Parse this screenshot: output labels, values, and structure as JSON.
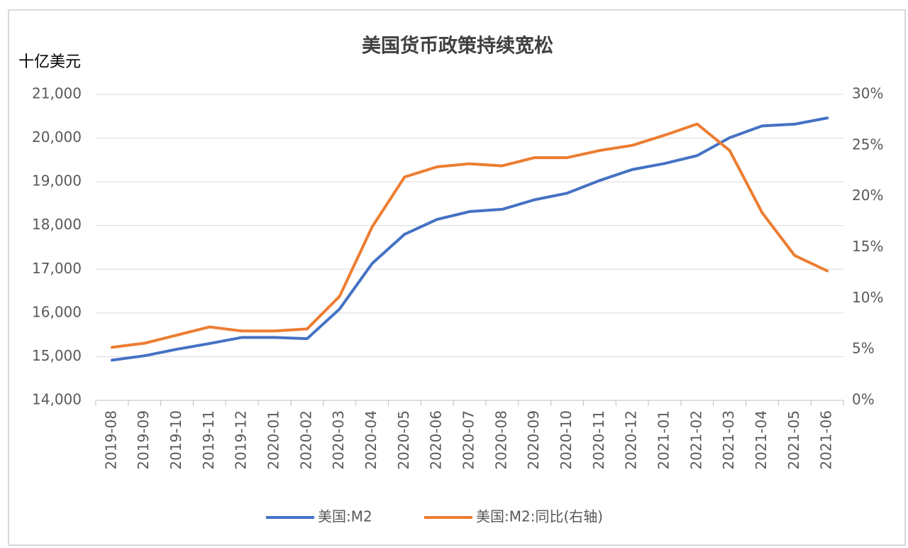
{
  "chart_data": {
    "type": "line",
    "title": "美国货币政策持续宽松",
    "y_axis_label": "十亿美元",
    "categories": [
      "2019-08",
      "2019-09",
      "2019-10",
      "2019-11",
      "2019-12",
      "2020-01",
      "2020-02",
      "2020-03",
      "2020-04",
      "2020-05",
      "2020-06",
      "2020-07",
      "2020-08",
      "2020-09",
      "2020-10",
      "2020-11",
      "2020-12",
      "2021-01",
      "2021-02",
      "2021-03",
      "2021-04",
      "2021-05",
      "2021-06"
    ],
    "series": [
      {
        "name": "美国:M2",
        "color": "#4472c4",
        "axis": "y",
        "values": [
          14920,
          15020,
          15170,
          15300,
          15440,
          15440,
          15410,
          16090,
          17130,
          17800,
          18140,
          18320,
          18370,
          18590,
          18740,
          19030,
          19280,
          19420,
          19600,
          20010,
          20280,
          20320,
          20460
        ]
      },
      {
        "name": "美国:M2:同比(右轴)",
        "color": "#ed7d31",
        "axis": "y2",
        "values": [
          5.2,
          5.6,
          6.4,
          7.2,
          6.8,
          6.8,
          7.0,
          10.2,
          17.0,
          21.9,
          22.9,
          23.2,
          23.0,
          23.8,
          23.8,
          24.5,
          25.0,
          26.0,
          27.1,
          24.5,
          18.4,
          14.2,
          12.7
        ]
      }
    ],
    "ylim": [
      14000,
      21000
    ],
    "yticks": [
      {
        "value": 14000,
        "label": "14,000"
      },
      {
        "value": 15000,
        "label": "15,000"
      },
      {
        "value": 16000,
        "label": "16,000"
      },
      {
        "value": 17000,
        "label": "17,000"
      },
      {
        "value": 18000,
        "label": "18,000"
      },
      {
        "value": 19000,
        "label": "19,000"
      },
      {
        "value": 20000,
        "label": "20,000"
      },
      {
        "value": 21000,
        "label": "21,000"
      }
    ],
    "y2lim": [
      0,
      30
    ],
    "y2ticks": [
      {
        "value": 0,
        "label": "0%"
      },
      {
        "value": 5,
        "label": "5%"
      },
      {
        "value": 10,
        "label": "10%"
      },
      {
        "value": 15,
        "label": "15%"
      },
      {
        "value": 20,
        "label": "20%"
      },
      {
        "value": 25,
        "label": "25%"
      },
      {
        "value": 30,
        "label": "30%"
      }
    ],
    "grid": true,
    "legend": "bottom"
  }
}
